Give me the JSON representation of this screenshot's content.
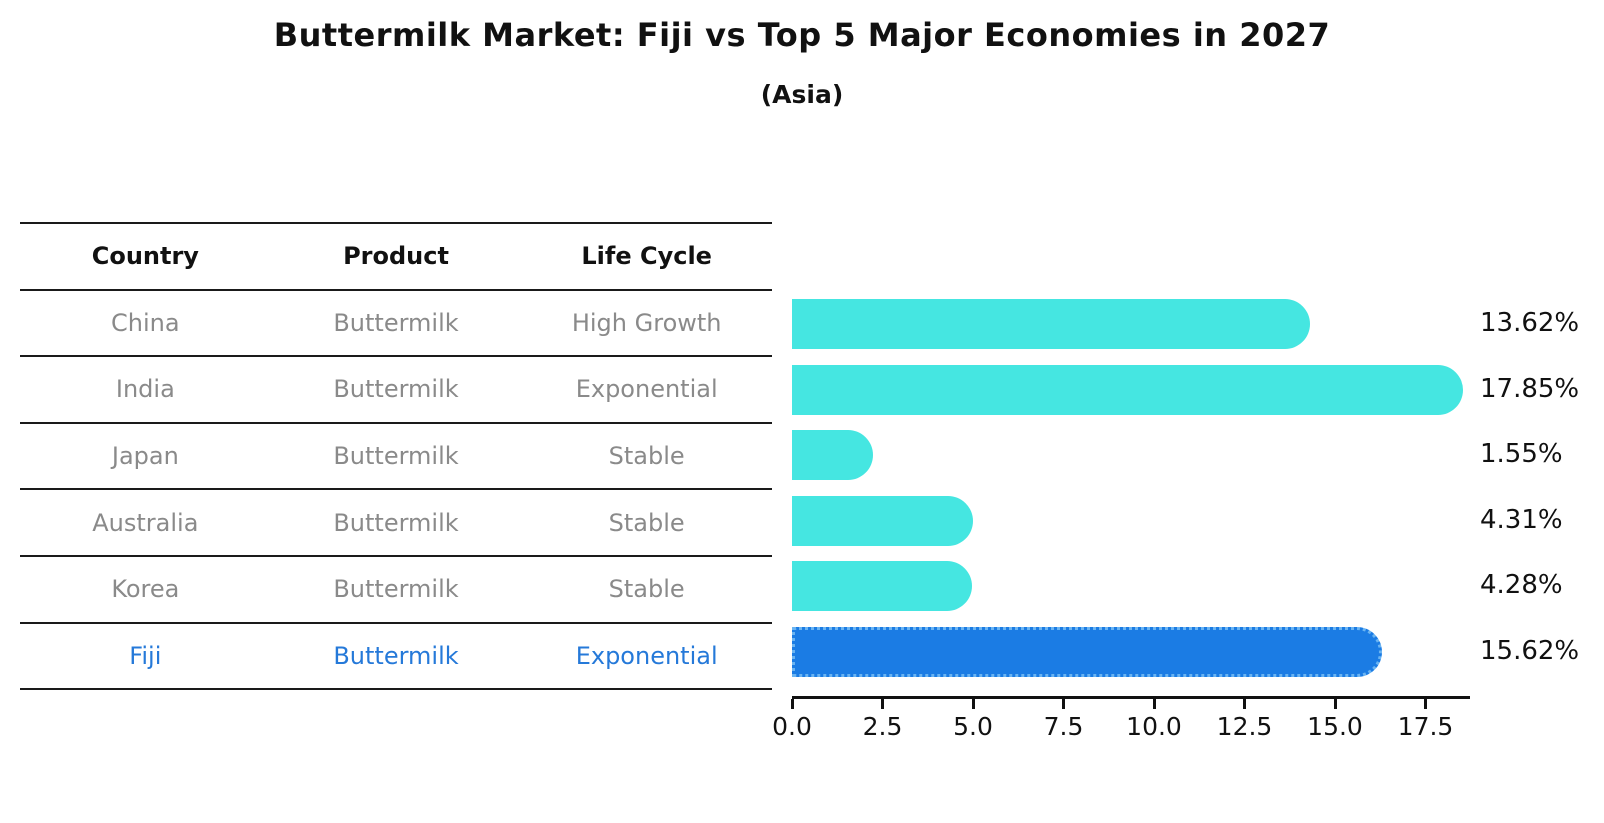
{
  "title": "Buttermilk Market: Fiji vs Top 5 Major Economies in 2027",
  "subtitle": "(Asia)",
  "table": {
    "headers": [
      "Country",
      "Product",
      "Life Cycle"
    ],
    "rows": [
      {
        "country": "China",
        "product": "Buttermilk",
        "life_cycle": "High Growth",
        "highlight": false
      },
      {
        "country": "India",
        "product": "Buttermilk",
        "life_cycle": "Exponential",
        "highlight": false
      },
      {
        "country": "Japan",
        "product": "Buttermilk",
        "life_cycle": "Stable",
        "highlight": false
      },
      {
        "country": "Australia",
        "product": "Buttermilk",
        "life_cycle": "Stable",
        "highlight": false
      },
      {
        "country": "Korea",
        "product": "Buttermilk",
        "life_cycle": "Stable",
        "highlight": false
      },
      {
        "country": "Fiji",
        "product": "Buttermilk",
        "life_cycle": "Exponential",
        "highlight": true
      }
    ]
  },
  "chart_data": {
    "type": "bar",
    "orientation": "horizontal",
    "categories": [
      "China",
      "India",
      "Japan",
      "Australia",
      "Korea",
      "Fiji"
    ],
    "values": [
      13.62,
      17.85,
      1.55,
      4.31,
      4.28,
      15.62
    ],
    "value_labels": [
      "13.62%",
      "17.85%",
      "1.55%",
      "4.31%",
      "4.28%",
      "15.62%"
    ],
    "x_tick_values": [
      0.0,
      2.5,
      5.0,
      7.5,
      10.0,
      12.5,
      15.0,
      17.5
    ],
    "x_tick_labels": [
      "0.0",
      "2.5",
      "5.0",
      "7.5",
      "10.0",
      "12.5",
      "15.0",
      "17.5"
    ],
    "xlim": [
      0,
      18.7
    ],
    "grid": false,
    "legend": "none",
    "highlight_index": 5,
    "bar_color": "#45e6e1",
    "highlight_bar_color": "#1b7ce4",
    "highlight_border_color": "#6ab4f2",
    "highlight_text_color": "#2579d9",
    "row_text_color": "#8a8a8a"
  }
}
